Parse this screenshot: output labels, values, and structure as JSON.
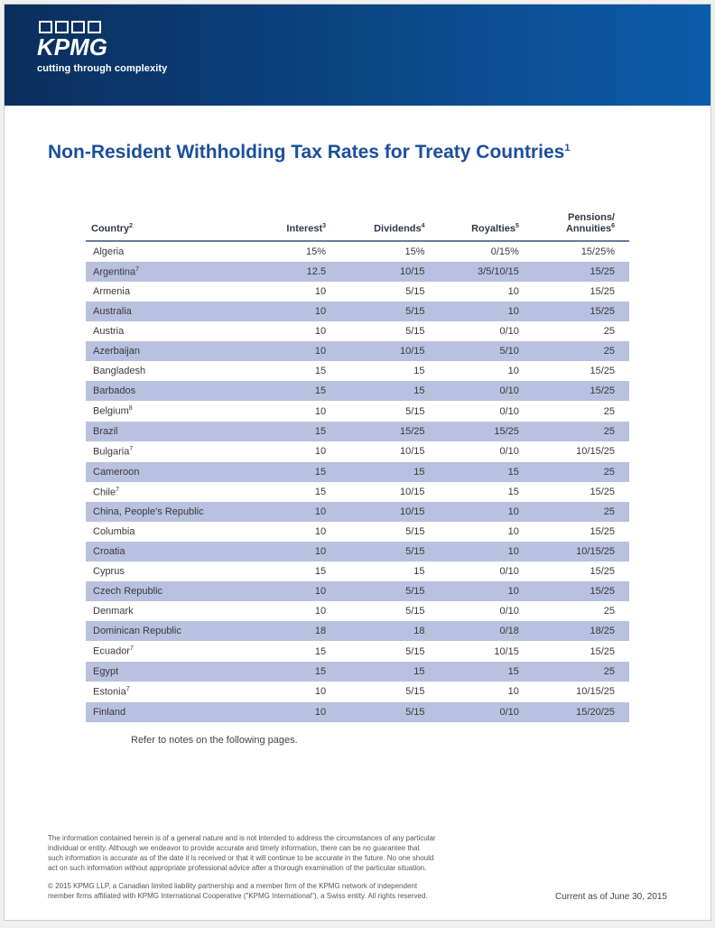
{
  "header": {
    "logo_text": "KPMG",
    "tagline": "cutting through complexity",
    "gradient_from": "#0b2e5c",
    "gradient_to": "#0b5caa"
  },
  "title": "Non-Resident Withholding Tax Rates for Treaty Countries",
  "title_super": "1",
  "title_color": "#1a4f9c",
  "table": {
    "alt_row_bg": "#b8c1df",
    "header_border": "#6b7a99",
    "columns": [
      {
        "label": "Country",
        "super": "2",
        "align": "left"
      },
      {
        "label": "Interest",
        "super": "3",
        "align": "right"
      },
      {
        "label": "Dividends",
        "super": "4",
        "align": "right"
      },
      {
        "label": "Royalties",
        "super": "5",
        "align": "right"
      },
      {
        "label": "Pensions/\nAnnuities",
        "super": "6",
        "align": "right"
      }
    ],
    "rows": [
      {
        "country": "Algeria",
        "super": "",
        "interest": "15%",
        "dividends": "15%",
        "royalties": "0/15%",
        "pensions": "15/25%"
      },
      {
        "country": "Argentina",
        "super": "7",
        "interest": "12.5",
        "dividends": "10/15",
        "royalties": "3/5/10/15",
        "pensions": "15/25"
      },
      {
        "country": "Armenia",
        "super": "",
        "interest": "10",
        "dividends": "5/15",
        "royalties": "10",
        "pensions": "15/25"
      },
      {
        "country": "Australia",
        "super": "",
        "interest": "10",
        "dividends": "5/15",
        "royalties": "10",
        "pensions": "15/25"
      },
      {
        "country": "Austria",
        "super": "",
        "interest": "10",
        "dividends": "5/15",
        "royalties": "0/10",
        "pensions": "25"
      },
      {
        "country": "Azerbaijan",
        "super": "",
        "interest": "10",
        "dividends": "10/15",
        "royalties": "5/10",
        "pensions": "25"
      },
      {
        "country": "Bangladesh",
        "super": "",
        "interest": "15",
        "dividends": "15",
        "royalties": "10",
        "pensions": "15/25"
      },
      {
        "country": "Barbados",
        "super": "",
        "interest": "15",
        "dividends": "15",
        "royalties": "0/10",
        "pensions": "15/25"
      },
      {
        "country": "Belgium",
        "super": "8",
        "interest": "10",
        "dividends": "5/15",
        "royalties": "0/10",
        "pensions": "25"
      },
      {
        "country": "Brazil",
        "super": "",
        "interest": "15",
        "dividends": "15/25",
        "royalties": "15/25",
        "pensions": "25"
      },
      {
        "country": "Bulgaria",
        "super": "7",
        "interest": "10",
        "dividends": "10/15",
        "royalties": "0/10",
        "pensions": "10/15/25"
      },
      {
        "country": "Cameroon",
        "super": "",
        "interest": "15",
        "dividends": "15",
        "royalties": "15",
        "pensions": "25"
      },
      {
        "country": "Chile",
        "super": "7",
        "interest": "15",
        "dividends": "10/15",
        "royalties": "15",
        "pensions": "15/25"
      },
      {
        "country": "China, People's Republic",
        "super": "",
        "interest": "10",
        "dividends": "10/15",
        "royalties": "10",
        "pensions": "25"
      },
      {
        "country": "Columbia",
        "super": "",
        "interest": "10",
        "dividends": "5/15",
        "royalties": "10",
        "pensions": "15/25"
      },
      {
        "country": "Croatia",
        "super": "",
        "interest": "10",
        "dividends": "5/15",
        "royalties": "10",
        "pensions": "10/15/25"
      },
      {
        "country": "Cyprus",
        "super": "",
        "interest": "15",
        "dividends": "15",
        "royalties": "0/10",
        "pensions": "15/25"
      },
      {
        "country": "Czech Republic",
        "super": "",
        "interest": "10",
        "dividends": "5/15",
        "royalties": "10",
        "pensions": "15/25"
      },
      {
        "country": "Denmark",
        "super": "",
        "interest": "10",
        "dividends": "5/15",
        "royalties": "0/10",
        "pensions": "25"
      },
      {
        "country": "Dominican Republic",
        "super": "",
        "interest": "18",
        "dividends": "18",
        "royalties": "0/18",
        "pensions": "18/25"
      },
      {
        "country": "Ecuador",
        "super": "7",
        "interest": "15",
        "dividends": "5/15",
        "royalties": "10/15",
        "pensions": "15/25"
      },
      {
        "country": "Egypt",
        "super": "",
        "interest": "15",
        "dividends": "15",
        "royalties": "15",
        "pensions": "25"
      },
      {
        "country": "Estonia",
        "super": "7",
        "interest": "10",
        "dividends": "5/15",
        "royalties": "10",
        "pensions": "10/15/25"
      },
      {
        "country": "Finland",
        "super": "",
        "interest": "10",
        "dividends": "5/15",
        "royalties": "0/10",
        "pensions": "15/20/25"
      }
    ]
  },
  "table_note": "Refer to notes on the following pages.",
  "footer": {
    "disclaimer": "The information contained herein is of a general nature and is not intended to address the circumstances of any particular individual or entity. Although we endeavor to provide accurate and timely information, there can be no guarantee that such information is accurate as of the date it is received or that it will continue to be accurate in the future. No one should act on such information without appropriate professional advice after a thorough examination of the particular situation.",
    "copyright": "© 2015 KPMG LLP, a Canadian limited liability partnership and a member firm of the KPMG network of independent member firms affiliated with KPMG International Cooperative (\"KPMG International\"), a Swiss entity. All rights reserved.",
    "current_label": "Current as of ",
    "current_date": "June 30, 2015"
  }
}
